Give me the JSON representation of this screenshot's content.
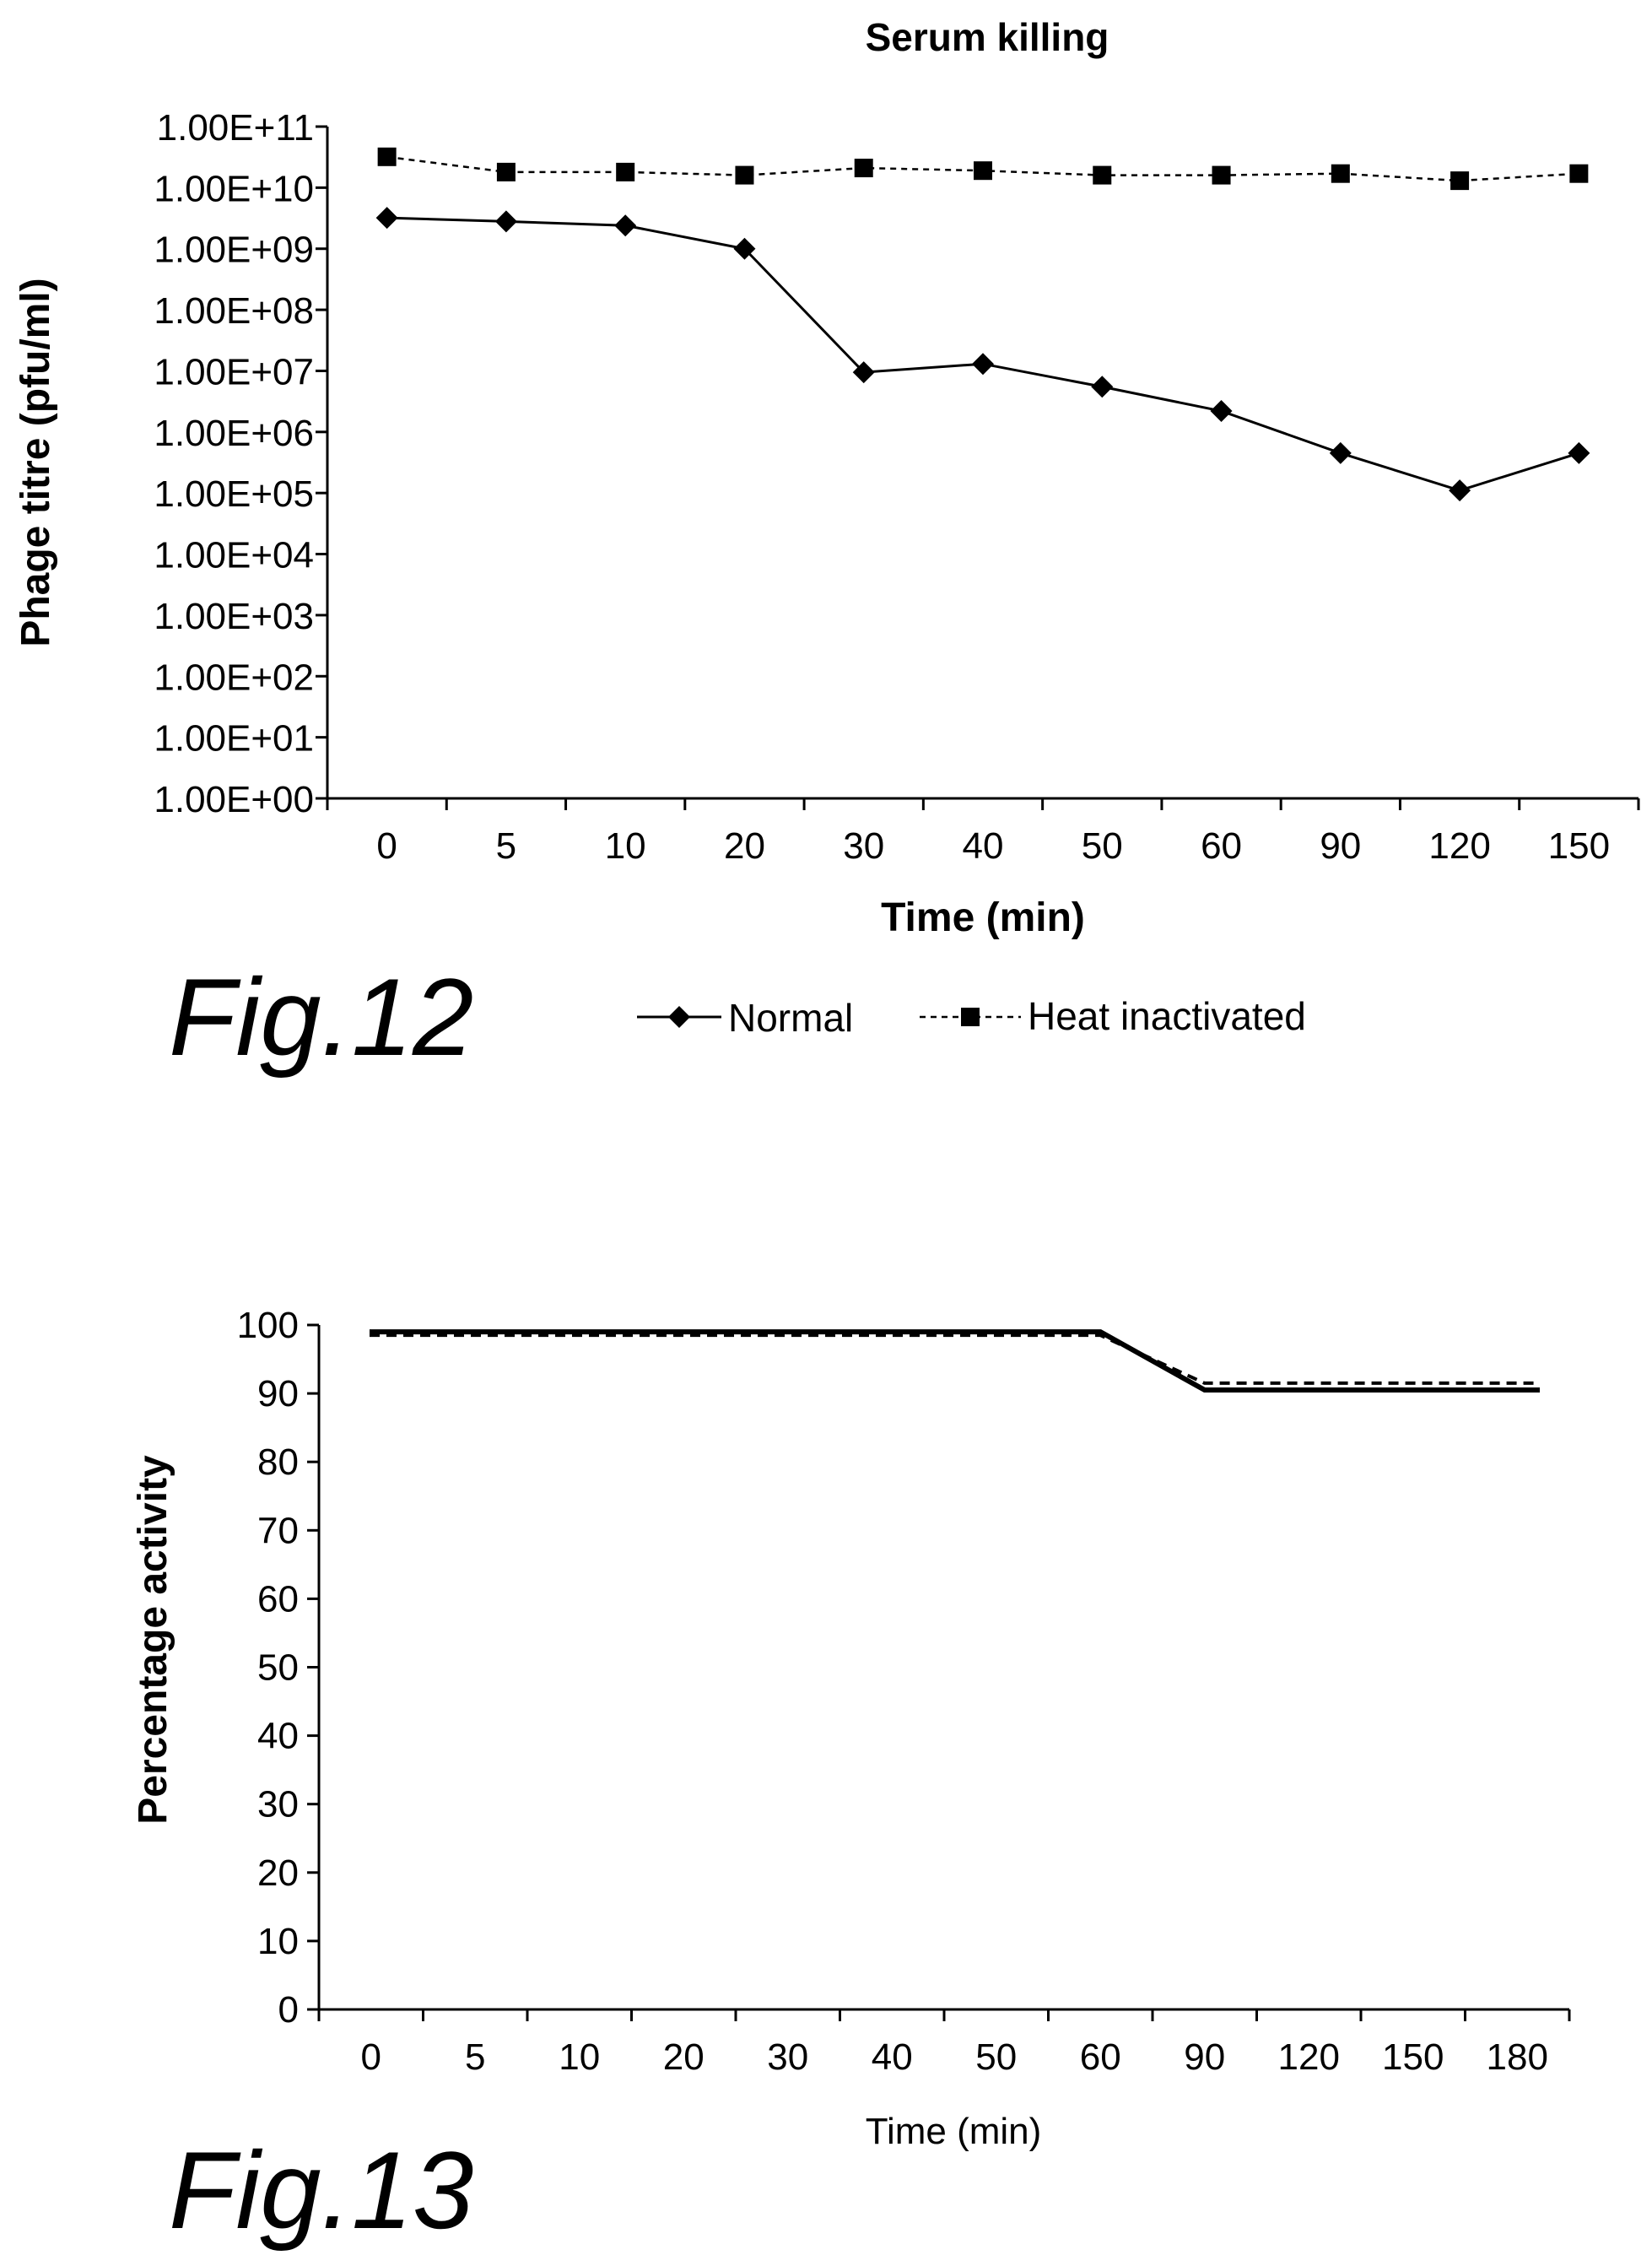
{
  "figures": [
    {
      "label": "Fig.12",
      "legend": [
        "Normal",
        "Heat inactivated"
      ]
    },
    {
      "label": "Fig.13"
    }
  ],
  "chart_data": [
    {
      "type": "line",
      "title": "Serum killing",
      "xlabel": "Time (min)",
      "ylabel": "Phage titre (pfu/ml)",
      "y_scale": "log",
      "ylim": [
        1,
        100000000000
      ],
      "y_tick_labels": [
        "1.00E+00",
        "1.00E+01",
        "1.00E+02",
        "1.00E+03",
        "1.00E+04",
        "1.00E+05",
        "1.00E+06",
        "1.00E+07",
        "1.00E+08",
        "1.00E+09",
        "1.00E+10",
        "1.00E+11"
      ],
      "categories": [
        "0",
        "5",
        "10",
        "20",
        "30",
        "40",
        "50",
        "60",
        "90",
        "120",
        "150"
      ],
      "grid": false,
      "legend_position": "bottom",
      "series": [
        {
          "name": "Normal",
          "line_style": "solid",
          "marker": "diamond",
          "values": [
            3200000000,
            2800000000,
            2400000000,
            1000000000,
            9500000,
            13000000,
            5500000,
            2200000,
            450000,
            110000,
            450000
          ]
        },
        {
          "name": "Heat inactivated",
          "line_style": "dashed",
          "marker": "square",
          "values": [
            32000000000,
            18000000000,
            18000000000,
            16000000000,
            21000000000,
            19000000000,
            16000000000,
            16000000000,
            17000000000,
            13000000000,
            17000000000
          ]
        }
      ]
    },
    {
      "type": "line",
      "xlabel": "Time (min)",
      "ylabel": "Percentage activity",
      "ylim": [
        0,
        100
      ],
      "y_ticks": [
        0,
        10,
        20,
        30,
        40,
        50,
        60,
        70,
        80,
        90,
        100
      ],
      "categories": [
        "0",
        "5",
        "10",
        "20",
        "30",
        "40",
        "50",
        "60",
        "90",
        "120",
        "150",
        "180"
      ],
      "grid": false,
      "series": [
        {
          "line_style": "solid",
          "values": [
            99,
            99,
            99,
            99,
            99,
            99,
            99,
            99,
            90.5,
            90.5,
            90.5,
            90.5
          ]
        },
        {
          "line_style": "dashed",
          "values": [
            98.5,
            98.5,
            98.5,
            98.5,
            98.5,
            98.5,
            98.5,
            98.5,
            91.5,
            91.5,
            91.5,
            91.5
          ]
        }
      ]
    }
  ]
}
